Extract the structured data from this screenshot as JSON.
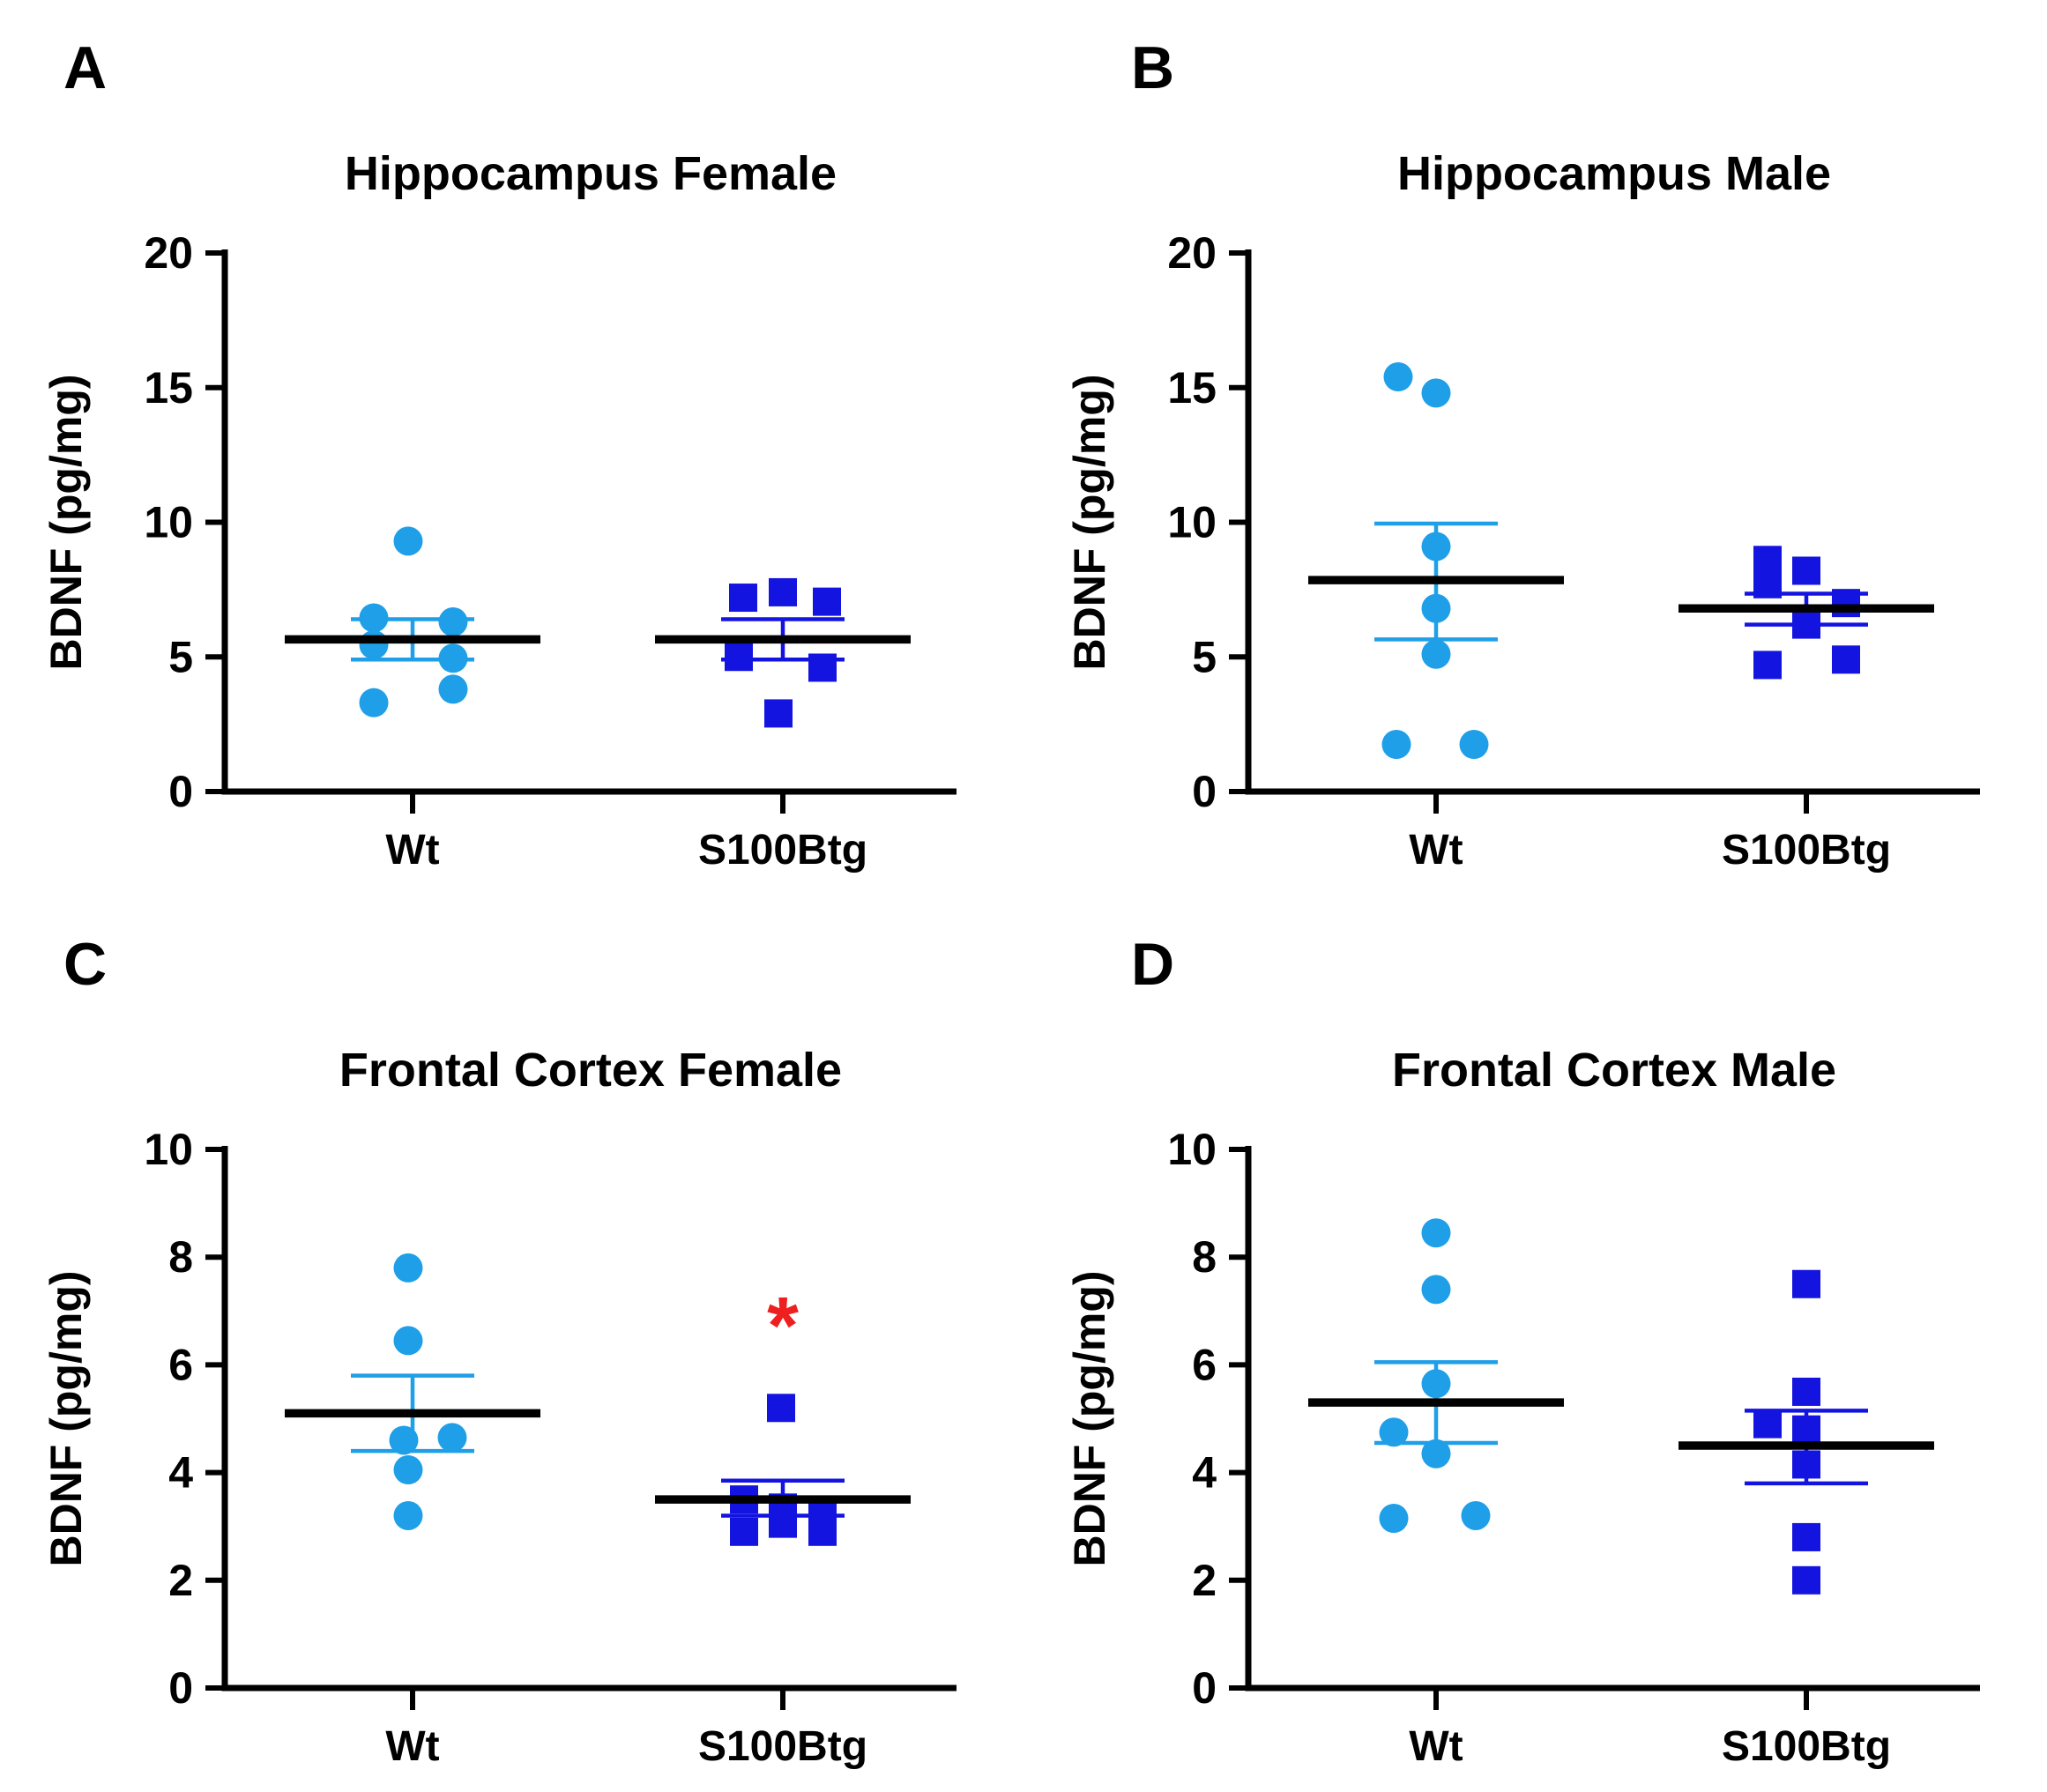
{
  "figure": {
    "background": "#ffffff",
    "axis_color": "#000000",
    "mean_line_color": "#000000",
    "wt_color": "#1E9FE8",
    "tg_color": "#1414E0",
    "significance_color": "#EE1F1F"
  },
  "chart_data": [
    {
      "type": "scatter",
      "panel_label": "A",
      "title": "Hippocampus Female",
      "ylabel": "BDNF (pg/mg)",
      "xlabel": "",
      "ylim": [
        0,
        20
      ],
      "yticks": [
        0,
        5,
        10,
        15,
        20
      ],
      "grid": false,
      "legend_position": "none",
      "x_categories": [
        "Wt",
        "S100Btg"
      ],
      "series": [
        {
          "name": "Wt",
          "marker": "circle",
          "color": "#1E9FE8",
          "values": [
            9.3,
            6.45,
            6.3,
            5.45,
            4.95,
            3.8,
            3.3
          ],
          "x_offsets": [
            -5,
            -44,
            46,
            -44,
            46,
            46,
            -44
          ],
          "mean": 5.65,
          "sem_upper": 6.4,
          "sem_lower": 4.9
        },
        {
          "name": "S100Btg",
          "marker": "square",
          "color": "#1414E0",
          "values": [
            7.2,
            7.4,
            7.05,
            5.0,
            4.6,
            2.9
          ],
          "x_offsets": [
            -45,
            0,
            50,
            -50,
            45,
            -5
          ],
          "mean": 5.65,
          "sem_upper": 6.4,
          "sem_lower": 4.9
        }
      ]
    },
    {
      "type": "scatter",
      "panel_label": "B",
      "title": "Hippocampus Male",
      "ylabel": "BDNF (pg/mg)",
      "xlabel": "",
      "ylim": [
        0,
        20
      ],
      "yticks": [
        0,
        5,
        10,
        15,
        20
      ],
      "grid": false,
      "legend_position": "none",
      "x_categories": [
        "Wt",
        "S100Btg"
      ],
      "series": [
        {
          "name": "Wt",
          "marker": "circle",
          "color": "#1E9FE8",
          "values": [
            15.4,
            14.8,
            9.1,
            6.8,
            5.1,
            1.75,
            1.75
          ],
          "x_offsets": [
            -43,
            0,
            0,
            0,
            0,
            -45,
            43
          ],
          "mean": 7.85,
          "sem_upper": 9.95,
          "sem_lower": 5.65
        },
        {
          "name": "S100Btg",
          "marker": "square",
          "color": "#1414E0",
          "values": [
            8.6,
            8.2,
            7.7,
            7.0,
            6.2,
            4.7,
            4.9
          ],
          "x_offsets": [
            -44,
            0,
            -44,
            45,
            0,
            -44,
            45
          ],
          "mean": 6.8,
          "sem_upper": 7.35,
          "sem_lower": 6.2
        }
      ]
    },
    {
      "type": "scatter",
      "panel_label": "C",
      "title": "Frontal Cortex Female",
      "ylabel": "BDNF (pg/mg)",
      "xlabel": "",
      "ylim": [
        0,
        10
      ],
      "yticks": [
        0,
        2,
        4,
        6,
        8,
        10
      ],
      "grid": false,
      "legend_position": "none",
      "x_categories": [
        "Wt",
        "S100Btg"
      ],
      "series": [
        {
          "name": "Wt",
          "marker": "circle",
          "color": "#1E9FE8",
          "values": [
            7.8,
            6.45,
            4.6,
            4.65,
            4.05,
            3.2
          ],
          "x_offsets": [
            -5,
            -5,
            -10,
            45,
            -5,
            -5
          ],
          "mean": 5.1,
          "sem_upper": 5.8,
          "sem_lower": 4.4
        },
        {
          "name": "S100Btg",
          "marker": "square",
          "color": "#1414E0",
          "values": [
            5.2,
            3.5,
            2.9,
            3.35,
            3.05,
            3.3,
            2.9
          ],
          "x_offsets": [
            -2,
            -44,
            -44,
            0,
            0,
            45,
            45
          ],
          "mean": 3.5,
          "sem_upper": 3.85,
          "sem_lower": 3.2
        }
      ],
      "significance": {
        "symbol": "*",
        "color": "#EE1F1F",
        "y_value": 6.7,
        "series_index": 1
      }
    },
    {
      "type": "scatter",
      "panel_label": "D",
      "title": "Frontal Cortex Male",
      "ylabel": "BDNF (pg/mg)",
      "xlabel": "",
      "ylim": [
        0,
        10
      ],
      "yticks": [
        0,
        2,
        4,
        6,
        8,
        10
      ],
      "grid": false,
      "legend_position": "none",
      "x_categories": [
        "Wt",
        "S100Btg"
      ],
      "series": [
        {
          "name": "Wt",
          "marker": "circle",
          "color": "#1E9FE8",
          "values": [
            8.45,
            7.4,
            5.65,
            4.75,
            4.35,
            3.15,
            3.2
          ],
          "x_offsets": [
            0,
            0,
            0,
            -48,
            0,
            -48,
            45
          ],
          "mean": 5.3,
          "sem_upper": 6.05,
          "sem_lower": 4.55
        },
        {
          "name": "S100Btg",
          "marker": "square",
          "color": "#1414E0",
          "values": [
            7.5,
            5.5,
            4.9,
            4.8,
            4.15,
            2.8,
            2.0
          ],
          "x_offsets": [
            0,
            0,
            -44,
            0,
            0,
            0,
            0
          ],
          "mean": 4.5,
          "sem_upper": 5.15,
          "sem_lower": 3.8
        }
      ]
    }
  ]
}
